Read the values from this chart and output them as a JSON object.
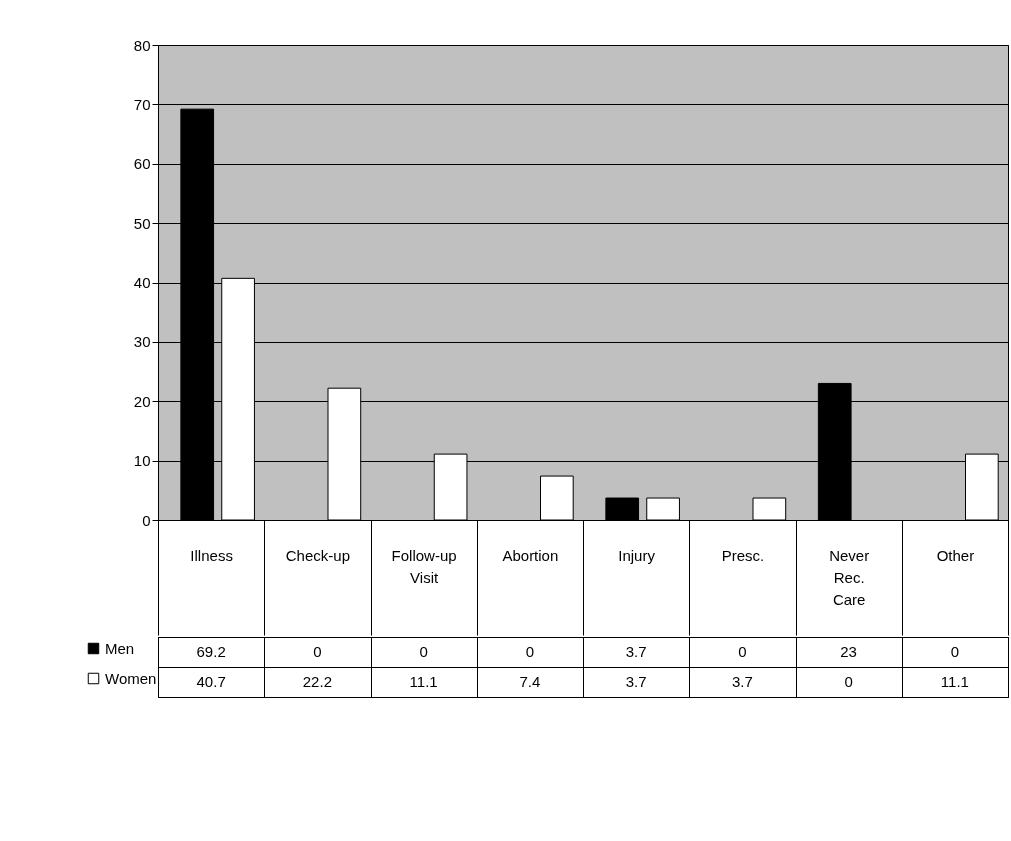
{
  "chart_data": {
    "type": "bar",
    "categories": [
      "Illness",
      "Check-up",
      "Follow-up Visit",
      "Abortion",
      "Injury",
      "Presc.",
      "Never Rec. Care",
      "Other"
    ],
    "series": [
      {
        "name": "Men",
        "color": "#000000",
        "values": [
          69.2,
          0,
          0,
          0,
          3.7,
          0,
          23,
          0
        ]
      },
      {
        "name": "Women",
        "color": "#ffffff",
        "values": [
          40.7,
          22.2,
          11.1,
          7.4,
          3.7,
          3.7,
          0,
          11.1
        ]
      }
    ],
    "ylim": [
      0,
      80
    ],
    "yticks": [
      0,
      10,
      20,
      30,
      40,
      50,
      60,
      70,
      80
    ],
    "grid": "y",
    "legend": "bottom left",
    "data_labels": true
  }
}
